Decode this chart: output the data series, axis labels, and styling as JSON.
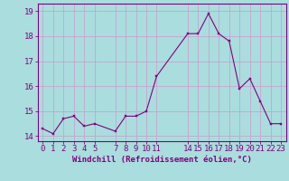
{
  "x": [
    0,
    1,
    2,
    3,
    4,
    5,
    7,
    8,
    9,
    10,
    11,
    14,
    15,
    16,
    17,
    18,
    19,
    20,
    21,
    22,
    23
  ],
  "y": [
    14.3,
    14.1,
    14.7,
    14.8,
    14.4,
    14.5,
    14.2,
    14.8,
    14.8,
    15.0,
    16.4,
    18.1,
    18.1,
    18.9,
    18.1,
    17.8,
    15.9,
    16.3,
    15.4,
    14.5,
    14.5
  ],
  "xticks": [
    0,
    1,
    2,
    3,
    4,
    5,
    7,
    8,
    9,
    10,
    11,
    14,
    15,
    16,
    17,
    18,
    19,
    20,
    21,
    22,
    23
  ],
  "yticks": [
    14,
    15,
    16,
    17,
    18,
    19
  ],
  "ylim": [
    13.8,
    19.3
  ],
  "xlim": [
    -0.5,
    23.5
  ],
  "xlabel": "Windchill (Refroidissement éolien,°C)",
  "line_color": "#800080",
  "marker_color": "#800080",
  "bg_color": "#aadddd",
  "grid_color": "#cc99cc",
  "border_color": "#800080",
  "xlabel_fontsize": 6.5,
  "tick_fontsize": 6.5,
  "figsize": [
    3.2,
    2.0
  ],
  "dpi": 100
}
